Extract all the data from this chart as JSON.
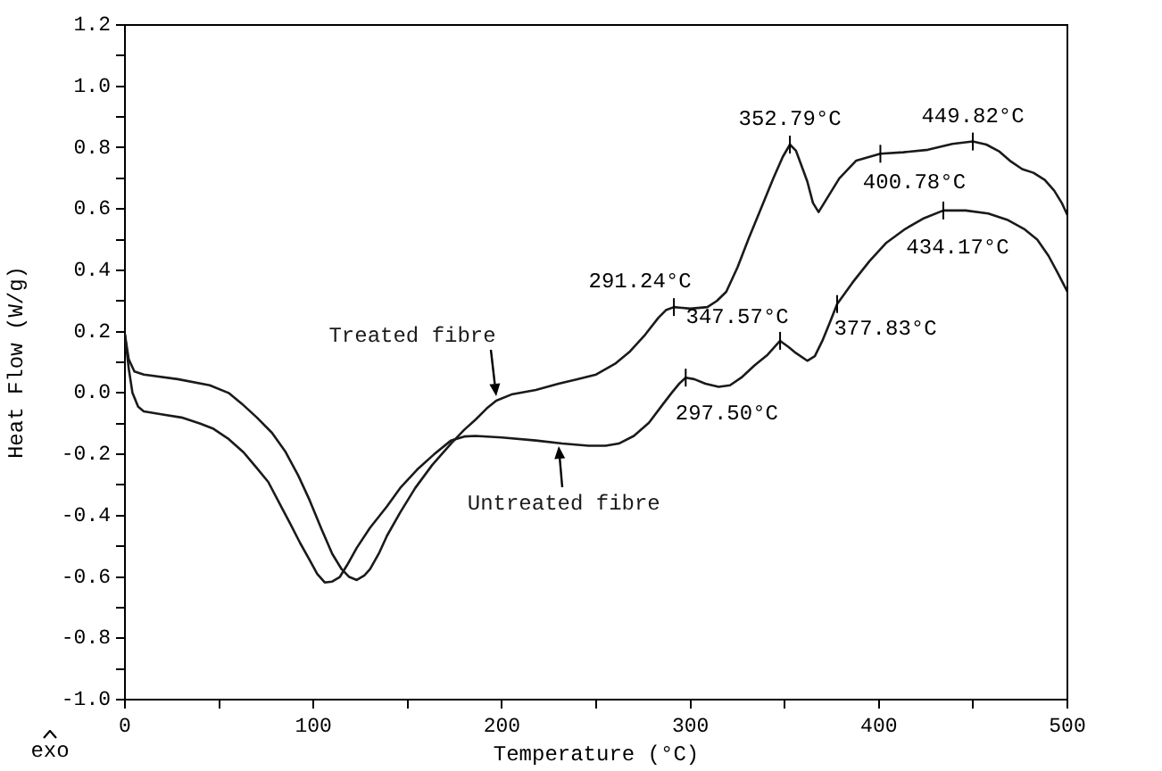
{
  "chart_data": {
    "type": "line",
    "xlabel": "Temperature (°C)",
    "ylabel": "Heat Flow (W/g)",
    "xlim": [
      0,
      500
    ],
    "ylim": [
      -1,
      1.2
    ],
    "xticks": [
      0,
      {
        "value": 50,
        "label": null
      },
      100,
      {
        "value": 150,
        "label": null
      },
      200,
      {
        "value": 250,
        "label": null
      },
      300,
      {
        "value": 350,
        "label": null
      },
      400,
      {
        "value": 450,
        "label": null
      },
      500
    ],
    "yticks": [
      {
        "value": -1,
        "label": "-1.0"
      },
      {
        "value": -0.9,
        "label": null
      },
      -0.8,
      {
        "value": -0.7,
        "label": null
      },
      -0.6,
      {
        "value": -0.5,
        "label": null
      },
      -0.4,
      {
        "value": -0.3,
        "label": null
      },
      -0.2,
      {
        "value": -0.1,
        "label": null
      },
      {
        "value": 0,
        "label": "0.0"
      },
      {
        "value": 0.1,
        "label": null
      },
      0.2,
      {
        "value": 0.3,
        "label": null
      },
      0.4,
      {
        "value": 0.5,
        "label": null
      },
      0.6,
      {
        "value": 0.7,
        "label": null
      },
      0.8,
      {
        "value": 0.9,
        "label": null
      },
      {
        "value": 1,
        "label": "1.0"
      },
      {
        "value": 1.1,
        "label": null
      },
      1.2
    ],
    "series": [
      {
        "name": "Treated fibre",
        "color": "#1a1a1a",
        "x": [
          0,
          2,
          5,
          10,
          28,
          45,
          55,
          62,
          70,
          78,
          85,
          92,
          98,
          104,
          110,
          115,
          119,
          123,
          127,
          130,
          135,
          139,
          146,
          154,
          163,
          173,
          180,
          186,
          192,
          197,
          205,
          218,
          230,
          240,
          250,
          260,
          268,
          276,
          283,
          287,
          291.24,
          300,
          309,
          314,
          319,
          325,
          331,
          338,
          344,
          349,
          352.79,
          356,
          359,
          362,
          365,
          368,
          372,
          379,
          388,
          400.78,
          413,
          426,
          439,
          449.82,
          457,
          464,
          470,
          476,
          482,
          488,
          493,
          497,
          500
        ],
        "values": [
          0.19,
          0.11,
          0.07,
          0.06,
          0.045,
          0.025,
          0,
          -0.035,
          -0.08,
          -0.13,
          -0.19,
          -0.27,
          -0.35,
          -0.44,
          -0.525,
          -0.575,
          -0.6,
          -0.61,
          -0.595,
          -0.575,
          -0.52,
          -0.466,
          -0.39,
          -0.31,
          -0.235,
          -0.165,
          -0.12,
          -0.087,
          -0.05,
          -0.025,
          -0.005,
          0.01,
          0.03,
          0.045,
          0.06,
          0.095,
          0.136,
          0.19,
          0.245,
          0.27,
          0.28,
          0.275,
          0.28,
          0.3,
          0.33,
          0.41,
          0.505,
          0.61,
          0.7,
          0.77,
          0.81,
          0.79,
          0.74,
          0.69,
          0.62,
          0.59,
          0.63,
          0.7,
          0.758,
          0.78,
          0.785,
          0.793,
          0.812,
          0.82,
          0.81,
          0.787,
          0.755,
          0.73,
          0.718,
          0.695,
          0.66,
          0.62,
          0.58
        ]
      },
      {
        "name": "Untreated fibre",
        "color": "#1a1a1a",
        "x": [
          0,
          2,
          4,
          7,
          10,
          20,
          30,
          40,
          47,
          55,
          63,
          70,
          76,
          82,
          88,
          93,
          98,
          102,
          106,
          110,
          114,
          118,
          123,
          130,
          139,
          146,
          155,
          164,
          173,
          180,
          186,
          200,
          218,
          232,
          246,
          255,
          262,
          270,
          278,
          285,
          290,
          294,
          297.5,
          302,
          308,
          315,
          321,
          327,
          334,
          341,
          347.57,
          352,
          356,
          362,
          366,
          370,
          374,
          377.83,
          386,
          395,
          404,
          414,
          424,
          434.17,
          446,
          458,
          468,
          477,
          484,
          490,
          495,
          500
        ],
        "values": [
          0.19,
          0.08,
          0,
          -0.045,
          -0.06,
          -0.07,
          -0.08,
          -0.1,
          -0.117,
          -0.15,
          -0.194,
          -0.245,
          -0.29,
          -0.36,
          -0.43,
          -0.49,
          -0.545,
          -0.59,
          -0.618,
          -0.615,
          -0.6,
          -0.56,
          -0.505,
          -0.44,
          -0.37,
          -0.31,
          -0.25,
          -0.2,
          -0.155,
          -0.142,
          -0.14,
          -0.145,
          -0.155,
          -0.165,
          -0.172,
          -0.172,
          -0.165,
          -0.14,
          -0.097,
          -0.04,
          0,
          0.03,
          0.05,
          0.045,
          0.03,
          0.02,
          0.025,
          0.05,
          0.09,
          0.125,
          0.17,
          0.15,
          0.13,
          0.105,
          0.12,
          0.17,
          0.23,
          0.29,
          0.36,
          0.43,
          0.49,
          0.535,
          0.57,
          0.595,
          0.595,
          0.585,
          0.565,
          0.535,
          0.5,
          0.447,
          0.39,
          0.33
        ]
      }
    ],
    "annotations": [
      {
        "text": "291.24°C",
        "x": 291.24,
        "y": 0.28
      },
      {
        "text": "352.79°C",
        "x": 352.79,
        "y": 0.81
      },
      {
        "text": "400.78°C",
        "x": 400.78,
        "y": 0.78
      },
      {
        "text": "449.82°C",
        "x": 449.82,
        "y": 0.82
      },
      {
        "text": "297.50°C",
        "x": 297.5,
        "y": 0.05
      },
      {
        "text": "347.57°C",
        "x": 347.57,
        "y": 0.17
      },
      {
        "text": "377.83°C",
        "x": 377.83,
        "y": 0.29
      },
      {
        "text": "434.17°C",
        "x": 434.17,
        "y": 0.595
      },
      "exo"
    ],
    "grid": false,
    "legend": false,
    "marker": "none",
    "line_style": "solid"
  }
}
